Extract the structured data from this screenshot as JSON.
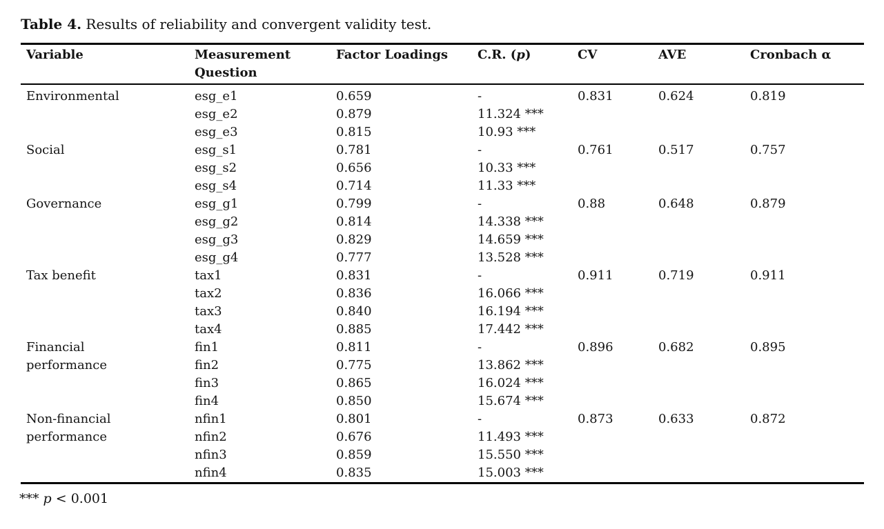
{
  "colors": {
    "background": "#ffffff",
    "text": "#141414",
    "rule": "#000000"
  },
  "caption": {
    "bold": "Table 4.",
    "rest": " Results of reliability and convergent validity test."
  },
  "columns": {
    "variable": "Variable",
    "question": "Measurement Question",
    "loadings": "Factor Loadings",
    "cr_prefix": "C.R. (",
    "cr_italic": "p",
    "cr_suffix": ")",
    "cv": "CV",
    "ave": "AVE",
    "cronbach": "Cronbach α"
  },
  "groups": [
    {
      "variable": "Environmental",
      "cv": "0.831",
      "ave": "0.624",
      "cronbach": "0.819",
      "items": [
        {
          "question": "esg_e1",
          "loading": "0.659",
          "cr": "-"
        },
        {
          "question": "esg_e2",
          "loading": "0.879",
          "cr": "11.324 ***"
        },
        {
          "question": "esg_e3",
          "loading": "0.815",
          "cr": "10.93 ***"
        }
      ]
    },
    {
      "variable": "Social",
      "cv": "0.761",
      "ave": "0.517",
      "cronbach": "0.757",
      "items": [
        {
          "question": "esg_s1",
          "loading": "0.781",
          "cr": "-"
        },
        {
          "question": "esg_s2",
          "loading": "0.656",
          "cr": "10.33 ***"
        },
        {
          "question": "esg_s4",
          "loading": "0.714",
          "cr": "11.33 ***"
        }
      ]
    },
    {
      "variable": "Governance",
      "cv": "0.88",
      "ave": "0.648",
      "cronbach": "0.879",
      "items": [
        {
          "question": "esg_g1",
          "loading": "0.799",
          "cr": "-"
        },
        {
          "question": "esg_g2",
          "loading": "0.814",
          "cr": "14.338 ***"
        },
        {
          "question": "esg_g3",
          "loading": "0.829",
          "cr": "14.659 ***"
        },
        {
          "question": "esg_g4",
          "loading": "0.777",
          "cr": "13.528 ***"
        }
      ]
    },
    {
      "variable": "Tax benefit",
      "cv": "0.911",
      "ave": "0.719",
      "cronbach": "0.911",
      "items": [
        {
          "question": "tax1",
          "loading": "0.831",
          "cr": "-"
        },
        {
          "question": "tax2",
          "loading": "0.836",
          "cr": "16.066 ***"
        },
        {
          "question": "tax3",
          "loading": "0.840",
          "cr": "16.194 ***"
        },
        {
          "question": "tax4",
          "loading": "0.885",
          "cr": "17.442 ***"
        }
      ]
    },
    {
      "variable": "Financial performance",
      "cv": "0.896",
      "ave": "0.682",
      "cronbach": "0.895",
      "items": [
        {
          "question": "fin1",
          "loading": "0.811",
          "cr": "-"
        },
        {
          "question": "fin2",
          "loading": "0.775",
          "cr": "13.862 ***"
        },
        {
          "question": "fin3",
          "loading": "0.865",
          "cr": "16.024 ***"
        },
        {
          "question": "fin4",
          "loading": "0.850",
          "cr": "15.674 ***"
        }
      ]
    },
    {
      "variable": "Non-financial performance",
      "cv": "0.873",
      "ave": "0.633",
      "cronbach": "0.872",
      "items": [
        {
          "question": "nfin1",
          "loading": "0.801",
          "cr": "-"
        },
        {
          "question": "nfin2",
          "loading": "0.676",
          "cr": "11.493 ***"
        },
        {
          "question": "nfin3",
          "loading": "0.859",
          "cr": "15.550 ***"
        },
        {
          "question": "nfin4",
          "loading": "0.835",
          "cr": "15.003 ***"
        }
      ]
    }
  ],
  "footnote": {
    "prefix": "*** ",
    "italic": "p",
    "suffix": " < 0.001"
  }
}
